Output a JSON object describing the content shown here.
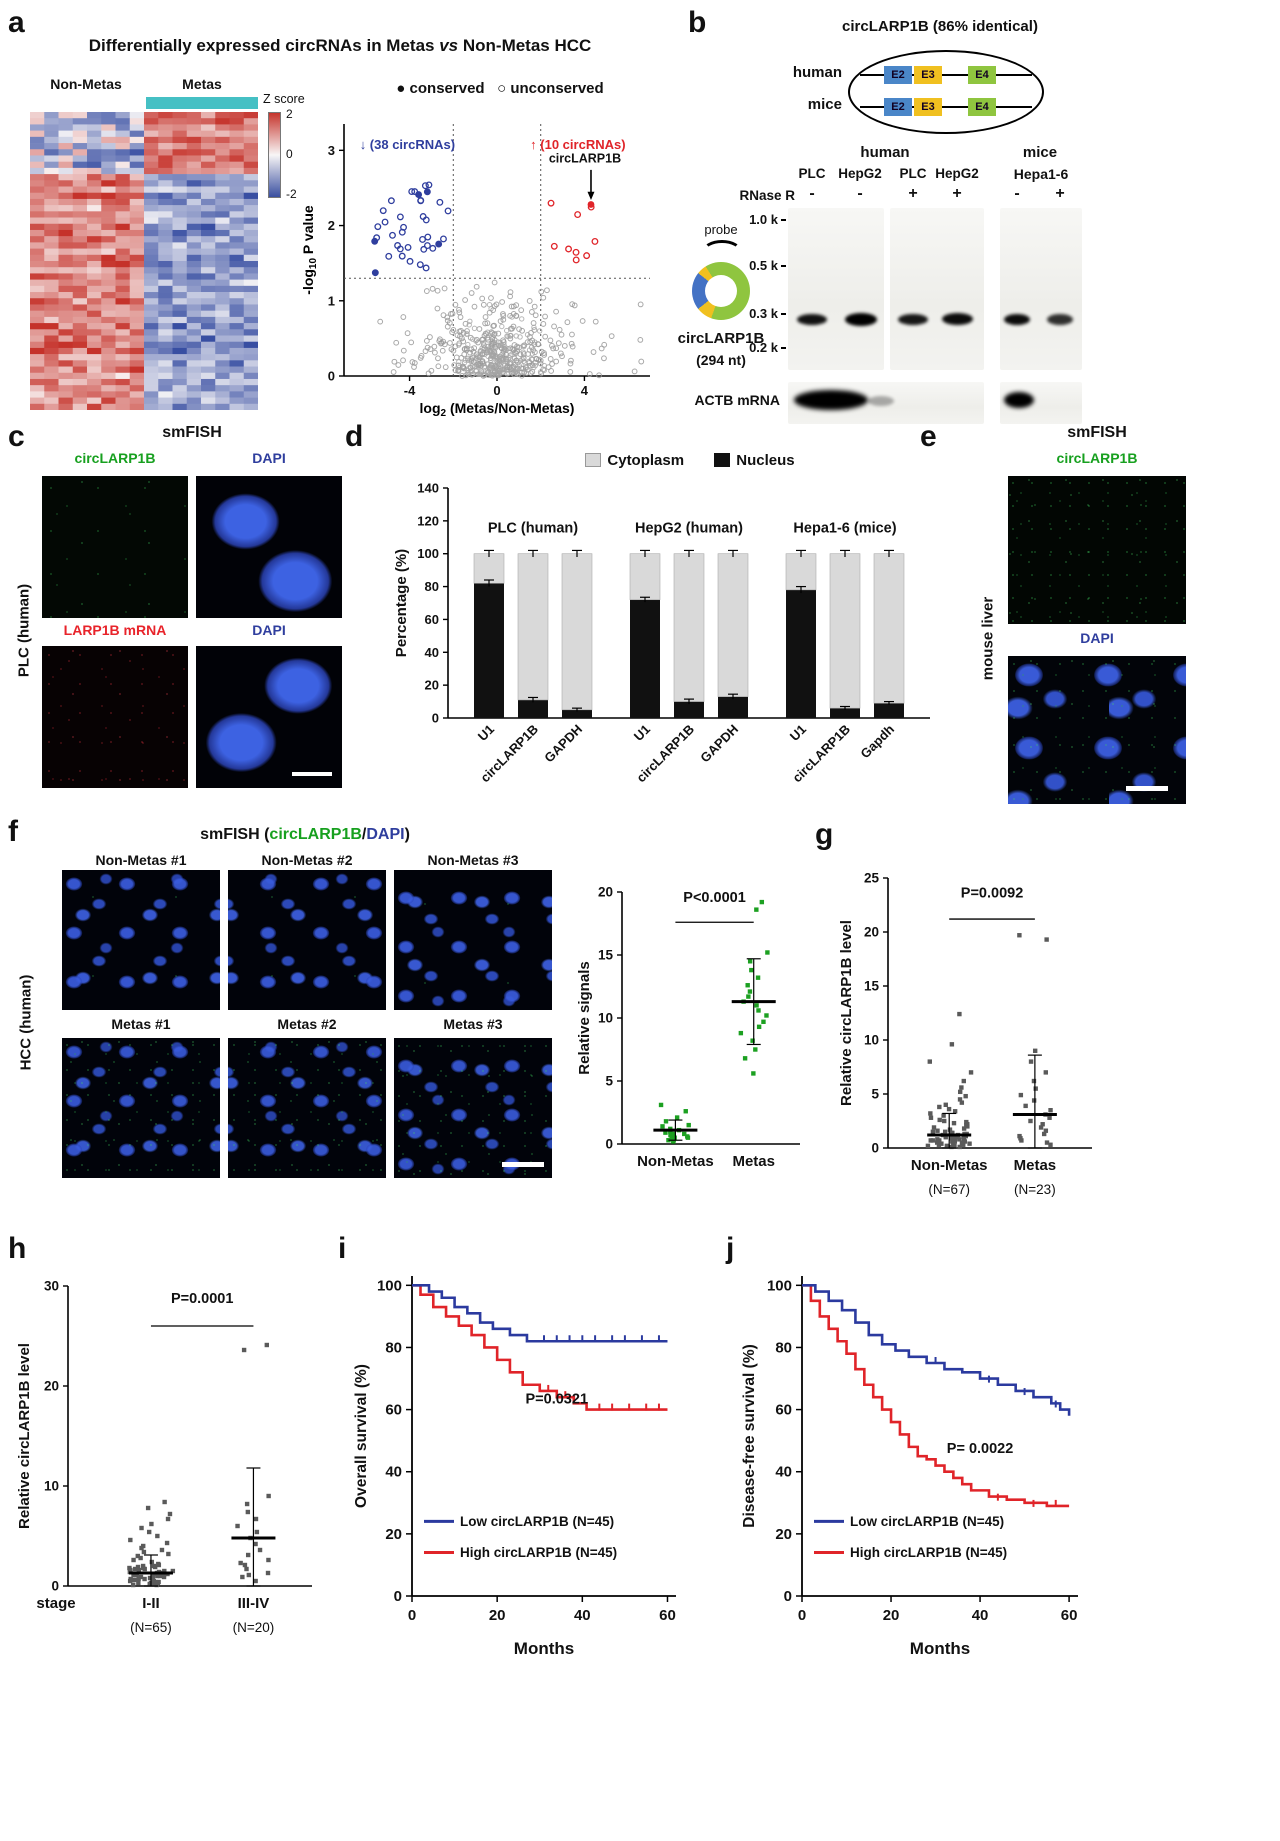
{
  "colors": {
    "green": "#17a01f",
    "blue": "#2f3e9e",
    "red": "#e8232a",
    "cyan": "#45c0c4",
    "km_blue": "#2b3a9f",
    "km_red": "#e02429",
    "bar_gray": "#d9d9d9",
    "bar_black": "#111111",
    "heat_red": "#c5342c",
    "heat_blue": "#3a4fa0"
  },
  "panels": {
    "a": {
      "label": "a",
      "title_pre": "Differentially expressed circRNAs in Metas ",
      "title_italic": "vs",
      "title_post": " Non-Metas HCC"
    },
    "b": {
      "label": "b",
      "title": "circLARP1B (86% identical)",
      "schematic": {
        "row1": "human",
        "row2": "mice",
        "exons": [
          "E2",
          "E3",
          "E4"
        ]
      },
      "gel": {
        "group_human": "human",
        "group_mice": "mice",
        "lanes": [
          "PLC",
          "HepG2",
          "PLC",
          "HepG2",
          "Hepa1-6"
        ],
        "rn": "RNase R",
        "signs": [
          "-",
          "-",
          "+",
          "+",
          "-",
          "+"
        ],
        "markers": [
          "1.0 k",
          "0.5 k",
          "0.3 k",
          "0.2 k"
        ],
        "probe": "probe",
        "circ_name": "circLARP1B",
        "circ_nt": "(294 nt)",
        "actb": "ACTB mRNA"
      }
    },
    "c": {
      "label": "c",
      "title": "smFISH",
      "img_labels": [
        "circLARP1B",
        "DAPI",
        "LARP1B mRNA",
        "DAPI"
      ],
      "side": "PLC (human)"
    },
    "d": {
      "label": "d"
    },
    "e": {
      "label": "e",
      "title": "smFISH",
      "img_labels": [
        "circLARP1B",
        "DAPI"
      ],
      "side": "mouse liver"
    },
    "f": {
      "label": "f",
      "title_parts": [
        "smFISH (",
        "circLARP1B",
        "/",
        "DAPI",
        ")"
      ],
      "cols": [
        "Non-Metas #1",
        "Non-Metas #2",
        "Non-Metas #3",
        "Metas #1",
        "Metas #2",
        "Metas #3"
      ],
      "side": "HCC (human)"
    },
    "g": {
      "label": "g"
    },
    "h": {
      "label": "h"
    },
    "i": {
      "label": "i"
    },
    "j": {
      "label": "j"
    }
  },
  "chart_data": [
    {
      "id": "heatmap",
      "type": "heatmap",
      "title": "Differentially expressed circRNAs in Metas vs Non-Metas HCC",
      "col_groups": [
        {
          "label": "Non-Metas",
          "n_samples": 8
        },
        {
          "label": "Metas",
          "n_samples": 8
        }
      ],
      "n_rows": 48,
      "up_in_metas_rows": 10,
      "down_in_metas_rows": 38,
      "colorbar": {
        "label": "Z score",
        "ticks": [
          "2",
          "0",
          "-2"
        ],
        "max_color": "#c5342c",
        "mid_color": "#f8f6f6",
        "min_color": "#3a4fa0"
      },
      "metas_strip_color": "#45c0c4"
    },
    {
      "id": "volcano",
      "type": "scatter",
      "xlabel_parts": [
        "log",
        "2",
        " (Metas/Non-Metas)"
      ],
      "ylabel_parts": [
        "-log",
        "10",
        " P value"
      ],
      "xlim": [
        -7,
        7
      ],
      "ylim": [
        0,
        3.35
      ],
      "x_ticks": [
        -4,
        0,
        4
      ],
      "y_ticks": [
        0,
        1,
        2,
        3
      ],
      "sig_threshold_y": 1.3,
      "fold_threshold_x": [
        -2,
        2
      ],
      "n_down": 38,
      "n_up": 10,
      "down_label": "(38 circRNAs)",
      "up_label": "(10 circRNAs)",
      "down_color": "#2f3e9e",
      "up_color": "#e02429",
      "highlight": {
        "label": "circLARP1B",
        "x": 4.3,
        "y": 2.28
      },
      "legend": [
        {
          "marker": "filled",
          "label": "conserved"
        },
        {
          "marker": "open",
          "label": "unconserved"
        }
      ]
    },
    {
      "id": "fractionation",
      "type": "bar",
      "stacked": true,
      "ylabel": "Percentage (%)",
      "ylim": [
        0,
        140
      ],
      "y_ticks": [
        0,
        20,
        40,
        60,
        80,
        100,
        120,
        140
      ],
      "legend": [
        {
          "label": "Cytoplasm",
          "color": "#d9d9d9"
        },
        {
          "label": "Nucleus",
          "color": "#111111"
        }
      ],
      "groups": [
        {
          "label": "PLC (human)",
          "categories": [
            "U1",
            "circLARP1B",
            "GAPDH"
          ],
          "nucleus": [
            82,
            11,
            5
          ],
          "cytoplasm": [
            18,
            89,
            95
          ],
          "nucleus_err": [
            2,
            1.5,
            1
          ],
          "total_err": [
            2,
            2,
            2
          ]
        },
        {
          "label": "HepG2 (human)",
          "categories": [
            "U1",
            "circLARP1B",
            "GAPDH"
          ],
          "nucleus": [
            72,
            10,
            13
          ],
          "cytoplasm": [
            28,
            90,
            87
          ],
          "nucleus_err": [
            1.5,
            1.5,
            1.5
          ],
          "total_err": [
            2,
            2,
            2
          ]
        },
        {
          "label": "Hepa1-6 (mice)",
          "categories": [
            "U1",
            "circLARP1B",
            "Gapdh"
          ],
          "nucleus": [
            78,
            6,
            9
          ],
          "cytoplasm": [
            22,
            94,
            91
          ],
          "nucleus_err": [
            2,
            1,
            1
          ],
          "total_err": [
            2,
            2,
            2
          ]
        }
      ]
    },
    {
      "id": "fish_signals",
      "type": "scatter",
      "ylabel": "Relative signals",
      "ylim": [
        0,
        20
      ],
      "y_ticks": [
        0,
        5,
        10,
        15,
        20
      ],
      "p_text": "P<0.0001",
      "p_line_y": 17.6,
      "p_text_y": 19.2,
      "marker_color": "#1ca021",
      "groups": [
        {
          "label": "Non-Metas",
          "values": [
            0.2,
            0.3,
            0.3,
            0.4,
            0.5,
            0.5,
            0.6,
            0.7,
            0.8,
            0.8,
            0.9,
            1.0,
            1.1,
            1.2,
            1.4,
            1.5,
            1.8,
            2.1,
            2.6,
            3.1
          ],
          "mean": 1.1,
          "sd": 0.8
        },
        {
          "label": "Metas",
          "values": [
            5.6,
            6.8,
            7.5,
            8.2,
            8.8,
            9.3,
            9.7,
            10.2,
            10.6,
            11.0,
            11.3,
            11.7,
            12.1,
            12.6,
            13.2,
            13.8,
            14.5,
            15.2,
            18.6,
            19.2
          ],
          "mean": 11.3,
          "sd": 3.4
        }
      ]
    },
    {
      "id": "tissue_level",
      "type": "scatter",
      "ylabel": "Relative circLARP1B level",
      "ylim": [
        0,
        25
      ],
      "y_ticks": [
        0,
        5,
        10,
        15,
        20,
        25
      ],
      "p_text": "P=0.0092",
      "p_line_y": 21.2,
      "p_text_y": 23.2,
      "marker_color": "#5a5a5a",
      "groups": [
        {
          "label": "Non-Metas",
          "sublabel": "(N=67)",
          "values": [
            0.1,
            0.1,
            0.2,
            0.2,
            0.2,
            0.3,
            0.3,
            0.3,
            0.4,
            0.4,
            0.4,
            0.5,
            0.5,
            0.5,
            0.6,
            0.6,
            0.6,
            0.7,
            0.7,
            0.7,
            0.8,
            0.8,
            0.8,
            0.9,
            0.9,
            0.9,
            1.0,
            1.0,
            1.0,
            1.1,
            1.1,
            1.2,
            1.2,
            1.3,
            1.3,
            1.4,
            1.4,
            1.5,
            1.5,
            1.6,
            1.7,
            1.8,
            1.9,
            2.0,
            2.1,
            2.2,
            2.3,
            2.4,
            2.5,
            2.6,
            2.8,
            3.0,
            3.2,
            3.4,
            3.6,
            3.8,
            4.0,
            4.2,
            4.5,
            4.8,
            5.2,
            5.6,
            6.2,
            7.0,
            8.0,
            9.6,
            12.4
          ],
          "mean": 1.2,
          "sd": 2.0
        },
        {
          "label": "Metas",
          "sublabel": "(N=23)",
          "values": [
            0.3,
            0.5,
            0.7,
            0.9,
            1.1,
            1.3,
            1.6,
            1.9,
            2.2,
            2.5,
            2.8,
            3.1,
            3.5,
            3.9,
            4.4,
            4.9,
            5.5,
            6.2,
            7.0,
            8.0,
            9.0,
            19.3,
            19.7
          ],
          "mean": 3.1,
          "sd": 5.5
        }
      ]
    },
    {
      "id": "stage_level",
      "type": "scatter",
      "ylabel": "Relative circLARP1B level",
      "ylim": [
        0,
        30
      ],
      "y_ticks": [
        0,
        10,
        20,
        30
      ],
      "p_text": "P=0.0001",
      "p_line_y": 26,
      "p_text_y": 28.3,
      "marker_color": "#5a5a5a",
      "x_prefix": "stage",
      "groups": [
        {
          "label": "I-II",
          "sublabel": "(N=65)",
          "values": [
            0.1,
            0.1,
            0.2,
            0.2,
            0.3,
            0.3,
            0.4,
            0.4,
            0.5,
            0.5,
            0.6,
            0.6,
            0.7,
            0.7,
            0.8,
            0.8,
            0.9,
            0.9,
            1.0,
            1.0,
            1.1,
            1.1,
            1.2,
            1.2,
            1.3,
            1.3,
            1.4,
            1.4,
            1.5,
            1.5,
            1.6,
            1.6,
            1.7,
            1.7,
            1.8,
            1.8,
            1.9,
            1.9,
            2.0,
            2.0,
            2.2,
            2.4,
            2.6,
            2.8,
            3.0,
            3.2,
            3.4,
            3.6,
            3.8,
            4.0,
            4.3,
            4.6,
            5.0,
            5.4,
            5.8,
            6.2,
            6.7,
            7.2,
            7.8,
            8.4,
            0.3,
            0.7,
            1.1,
            1.5,
            2.1
          ],
          "mean": 1.3,
          "sd": 1.8
        },
        {
          "label": "III-IV",
          "sublabel": "(N=20)",
          "values": [
            0.5,
            0.9,
            1.3,
            1.7,
            2.1,
            2.6,
            3.1,
            3.6,
            4.2,
            4.8,
            5.4,
            6.0,
            6.7,
            7.4,
            8.2,
            9.0,
            23.6,
            24.1,
            1.1,
            2.3
          ],
          "mean": 4.8,
          "sd": 7.0
        }
      ]
    },
    {
      "id": "km_os",
      "type": "line",
      "ylabel": "Overall survival (%)",
      "xlabel": "Months",
      "xlim": [
        0,
        62
      ],
      "ylim": [
        0,
        103
      ],
      "x_ticks": [
        0,
        20,
        40,
        60
      ],
      "y_ticks": [
        0,
        20,
        40,
        60,
        80,
        100
      ],
      "p_text": "P=0.0321",
      "p_pos": [
        34,
        62
      ],
      "series": [
        {
          "name": "Low circLARP1B (N=45)",
          "color": "#2b3a9f",
          "steps": [
            [
              0,
              100
            ],
            [
              4,
              98
            ],
            [
              7,
              96
            ],
            [
              10,
              93
            ],
            [
              13,
              91
            ],
            [
              16,
              88
            ],
            [
              19,
              86
            ],
            [
              23,
              84
            ],
            [
              27,
              82
            ],
            [
              60,
              82
            ]
          ],
          "censor": [
            [
              31,
              82
            ],
            [
              34,
              82
            ],
            [
              37,
              82
            ],
            [
              40,
              82
            ],
            [
              43,
              82
            ],
            [
              47,
              82
            ],
            [
              50,
              82
            ],
            [
              54,
              82
            ],
            [
              58,
              82
            ]
          ]
        },
        {
          "name": "High circLARP1B (N=45)",
          "color": "#e02429",
          "steps": [
            [
              0,
              100
            ],
            [
              2,
              97
            ],
            [
              5,
              93
            ],
            [
              8,
              90
            ],
            [
              11,
              87
            ],
            [
              14,
              84
            ],
            [
              17,
              80
            ],
            [
              20,
              76
            ],
            [
              23,
              72
            ],
            [
              26,
              68
            ],
            [
              30,
              66
            ],
            [
              34,
              64
            ],
            [
              38,
              62
            ],
            [
              41,
              60
            ],
            [
              60,
              60
            ]
          ],
          "censor": [
            [
              32,
              66
            ],
            [
              36,
              64
            ],
            [
              44,
              60
            ],
            [
              47,
              60
            ],
            [
              51,
              60
            ],
            [
              55,
              60
            ],
            [
              58,
              60
            ]
          ]
        }
      ]
    },
    {
      "id": "km_dfs",
      "type": "line",
      "ylabel": "Disease-free survival (%)",
      "xlabel": "Months",
      "xlim": [
        0,
        62
      ],
      "ylim": [
        0,
        103
      ],
      "x_ticks": [
        0,
        20,
        40,
        60
      ],
      "y_ticks": [
        0,
        20,
        40,
        60,
        80,
        100
      ],
      "p_text": "P= 0.0022",
      "p_pos": [
        40,
        46
      ],
      "series": [
        {
          "name": "Low circLARP1B (N=45)",
          "color": "#2b3a9f",
          "steps": [
            [
              0,
              100
            ],
            [
              3,
              98
            ],
            [
              6,
              95
            ],
            [
              9,
              92
            ],
            [
              12,
              88
            ],
            [
              15,
              84
            ],
            [
              18,
              81
            ],
            [
              21,
              79
            ],
            [
              24,
              77
            ],
            [
              28,
              75
            ],
            [
              32,
              73
            ],
            [
              36,
              72
            ],
            [
              40,
              70
            ],
            [
              44,
              68
            ],
            [
              48,
              66
            ],
            [
              52,
              64
            ],
            [
              56,
              62
            ],
            [
              58,
              60
            ],
            [
              60,
              58
            ]
          ],
          "censor": [
            [
              30,
              75
            ],
            [
              42,
              69
            ],
            [
              50,
              65
            ],
            [
              57,
              61
            ]
          ]
        },
        {
          "name": "High circLARP1B (N=45)",
          "color": "#e02429",
          "steps": [
            [
              0,
              100
            ],
            [
              2,
              95
            ],
            [
              4,
              90
            ],
            [
              6,
              86
            ],
            [
              8,
              82
            ],
            [
              10,
              78
            ],
            [
              12,
              73
            ],
            [
              14,
              68
            ],
            [
              16,
              64
            ],
            [
              18,
              60
            ],
            [
              20,
              56
            ],
            [
              22,
              52
            ],
            [
              24,
              48
            ],
            [
              26,
              45
            ],
            [
              28,
              44
            ],
            [
              30,
              42
            ],
            [
              32,
              40
            ],
            [
              34,
              38
            ],
            [
              36,
              36
            ],
            [
              38,
              34
            ],
            [
              42,
              32
            ],
            [
              46,
              31
            ],
            [
              50,
              30
            ],
            [
              55,
              29
            ],
            [
              60,
              29
            ]
          ],
          "censor": [
            [
              44,
              31
            ],
            [
              52,
              29
            ],
            [
              57,
              29
            ]
          ]
        }
      ]
    }
  ]
}
